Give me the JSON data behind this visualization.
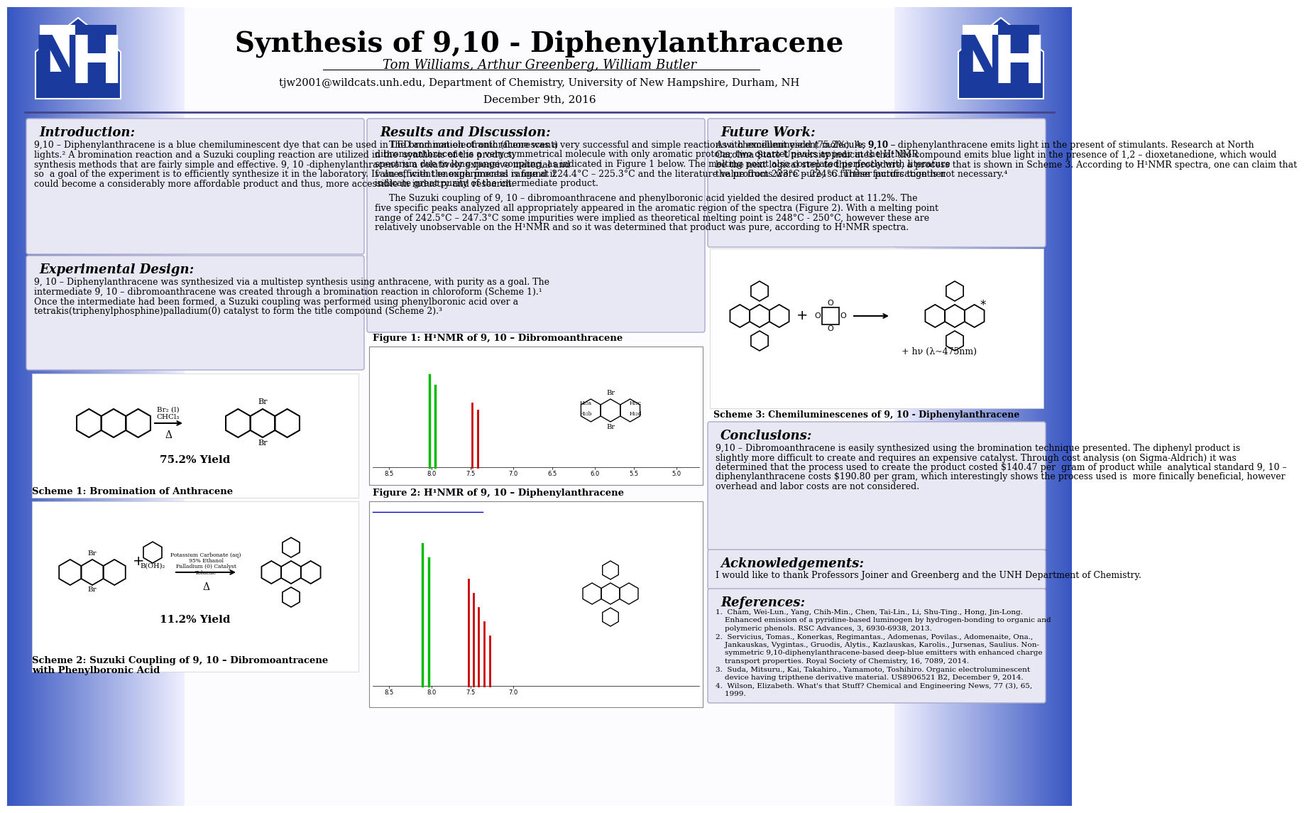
{
  "title": "Synthesis of 9,10 - Diphenylanthracene",
  "authors": "Tom Williams, Arthur Greenberg, William Butler",
  "email_dept": "tjw2001@wildcats.unh.edu, Department of Chemistry, University of New Hampshire, Durham, NH",
  "date": "December 9th, 2016",
  "intro_title": "Introduction:",
  "intro_text_lines": [
    "9,10 – Diphenylanthracene is a blue chemiluminescent dye that can be used in LED and non-electronic (fluorescent)",
    "lights.² A bromination reaction and a Suzuki coupling reaction are utilized in the  synthesis of the product;",
    "synthesis methods that are fairly simple and effective. 9, 10 -diphenylanthracene is a relatively expensive material and",
    "so  a goal of the experiment is to efficiently synthesize it in the laboratory. If  an efficient enough process is found it",
    "could become a considerably more affordable product and thus, more accessible in industry and research."
  ],
  "exp_title": "Experimental Design:",
  "exp_text_lines": [
    "9, 10 – Diphenylanthracene was synthesized via a multistep synthesis using anthracene, with purity as a goal. The",
    "intermediate 9, 10 – dibromoanthracene was created through a bromination reaction in chloroform (Scheme 1).¹",
    "Once the intermediate had been formed, a Suzuki coupling was performed using phenylboronic acid over a",
    "tetrakis(triphenylphosphine)palladium(0) catalyst to form the title compound (Scheme 2).³"
  ],
  "scheme1_caption": "Scheme 1: Bromination of Anthracene",
  "scheme1_yield": "75.2% Yield",
  "scheme2_caption": "Scheme 2: Suzuki Coupling of 9, 10 – Dibromoantracene\nwith Phenylboronic Acid",
  "scheme2_yield": "11.2% Yield",
  "results_title": "Results and Discussion:",
  "results_text1_lines": [
    "     The bromination of anthracene was a very successful and simple reaction with excellent yield (75.2%). As 9,10 –",
    "dibromoanthracene is a very symmetrical molecule with only aromatic protons, two quartet peaks appear in the H¹NMR",
    "spectrum due to long-range coupling, as indicated in Figure 1 below. The melting point also correlated perfectly with literature",
    "values, with the experimental range at 224.4°C – 225.3°C and the literature value from 223°C – 224°C. These factors together",
    "indicate great purity of the intermediate product."
  ],
  "results_text2_lines": [
    "     The Suzuki coupling of 9, 10 – dibromoanthracene and phenylboronic acid yielded the desired product at 11.2%. The",
    "five specific peaks analyzed all appropriately appeared in the aromatic region of the spectra (Figure 2). With a melting point",
    "range of 242.5°C – 247.3°C some impurities were implied as theoretical melting point is 248°C - 250°C, however these are",
    "relatively unobservable on the H¹NMR and so it was determined that product was pure, according to H¹NMR spectra."
  ],
  "fig1_caption": "Figure 1: H¹NMR of 9, 10 – Dibromoanthracene",
  "fig2_caption": "Figure 2: H¹NMR of 9, 10 – Diphenylanthracene",
  "future_title": "Future Work:",
  "future_text_lines": [
    "As a chemiluminescent molecule, 9,10 – diphenylanthracene emits light in the present of stimulants. Research at North",
    "Carolina State University indicates that the compound emits blue light in the presence of 1,2 – dioxetanedione, which would",
    "be the next logical step to this procedure, a process that is shown in Scheme 3. According to H¹NMR spectra, one can claim that",
    "the products were pure, so further purification is not necessary.⁴"
  ],
  "scheme3_caption": "Scheme 3: Chemiluminescenes of 9, 10 - Diphenylanthracene",
  "conclusions_title": "Conclusions:",
  "conclusions_text_lines": [
    "9,10 – Dibromoanthracene is easily synthesized using the bromination technique presented. The diphenyl product is",
    "slightly more difficult to create and requires an expensive catalyst. Through cost analysis (on Sigma-Aldrich) it was",
    "determined that the process used to create the product costed $140.47 per  gram of product while  analytical standard 9, 10 –",
    "diphenylanthracene costs $190.80 per gram, which interestingly shows the process used is  more finically beneficial, however",
    "overhead and labor costs are not considered."
  ],
  "acknowledgements_title": "Acknowledgements:",
  "acknowledgements_text": "I would like to thank Professors Joiner and Greenberg and the UNH Department of Chemistry.",
  "references_title": "References:",
  "ref_lines": [
    "1.  Cham, Wei-Lun., Yang, Chih-Min., Chen, Tai-Lin., Li, Shu-Ting., Hong, Jin-Long.",
    "    Enhanced emission of a pyridine-based luminogen by hydrogen-bonding to organic and",
    "    polymeric phenols. RSC Advances, 3, 6930-6938, 2013.",
    "2.  Servicius, Tomas., Konerkas, Regimantas., Adomenas, Povilas., Adomenaite, Ona.,",
    "    Jankauskas, Vygintas., Gruodis, Alytis., Kazlauskas, Karolis., Jursenas, Saulius. Non-",
    "    symmetric 9,10-diphenylanthracene-based deep-blue emitters with enhanced charge",
    "    transport properties. Royal Society of Chemistry, 16, 7089, 2014.",
    "3.  Suda, Mitsuru., Kai, Takahiro., Yamamoto, Toshihiro. Organic electroluminescent",
    "    device having tripthene derivative material. US8906521 B2, December 9, 2014.",
    "4.  Wilson, Elizabeth. What's that Stuff? Chemical and Engineering News, 77 (3), 65,",
    "    1999."
  ]
}
